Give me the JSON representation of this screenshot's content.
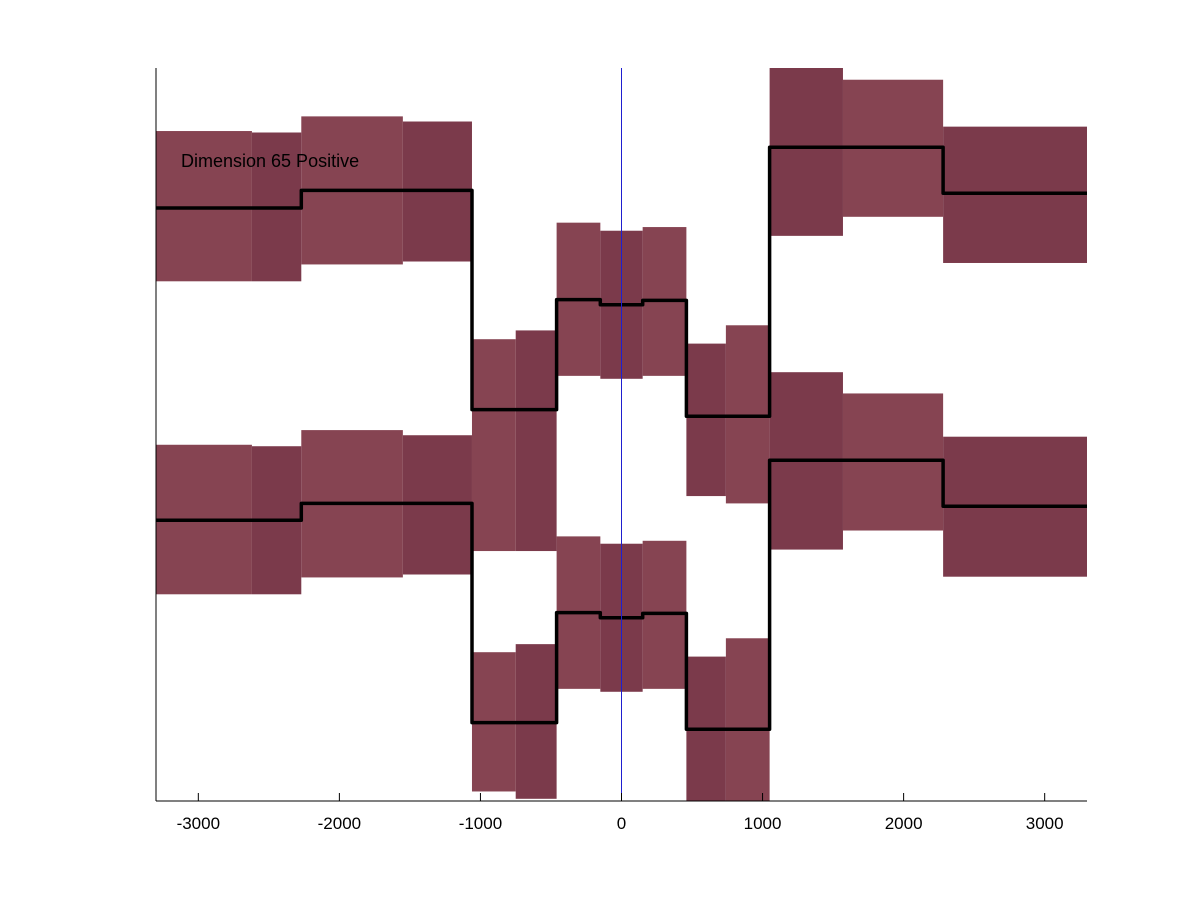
{
  "chart_data": {
    "type": "line",
    "title": "",
    "xlabel": "",
    "ylabel": "",
    "annotation": "Dimension 65 Positive",
    "xlim": [
      -3300,
      3300
    ],
    "ylim": [
      0,
      1
    ],
    "x_ticks": [
      -3000,
      -2000,
      -1000,
      0,
      1000,
      2000,
      3000
    ],
    "x_tick_labels": [
      "-3000",
      "-2000",
      "-1000",
      "0",
      "1000",
      "2000",
      "3000"
    ],
    "show_y_ticks": false,
    "grid": false,
    "reference_line_x": 0,
    "colors": {
      "band": "#7b3a4b",
      "band_alt": "#864452",
      "line": "#000000",
      "reference": "#1f1fd0",
      "axis": "#000000"
    },
    "bands": [
      {
        "name": "upper",
        "segments": [
          {
            "x": [
              -3300,
              -2620
            ],
            "lower": 0.709,
            "upper": 0.914
          },
          {
            "x": [
              -2620,
              -2270
            ],
            "lower": 0.709,
            "upper": 0.912
          },
          {
            "x": [
              -2270,
              -1550
            ],
            "lower": 0.732,
            "upper": 0.934
          },
          {
            "x": [
              -1550,
              -1060
            ],
            "lower": 0.736,
            "upper": 0.927
          },
          {
            "x": [
              -1060,
              -750
            ],
            "lower": 0.341,
            "upper": 0.63
          },
          {
            "x": [
              -750,
              -460
            ],
            "lower": 0.341,
            "upper": 0.642
          },
          {
            "x": [
              -460,
              -150
            ],
            "lower": 0.58,
            "upper": 0.789
          },
          {
            "x": [
              -150,
              150
            ],
            "lower": 0.576,
            "upper": 0.778
          },
          {
            "x": [
              150,
              460
            ],
            "lower": 0.58,
            "upper": 0.783
          },
          {
            "x": [
              460,
              740
            ],
            "lower": 0.416,
            "upper": 0.624
          },
          {
            "x": [
              740,
              1050
            ],
            "lower": 0.406,
            "upper": 0.649
          },
          {
            "x": [
              1050,
              1570
            ],
            "lower": 0.771,
            "upper": 1.0
          },
          {
            "x": [
              1570,
              2280
            ],
            "lower": 0.797,
            "upper": 0.984
          },
          {
            "x": [
              2280,
              3300
            ],
            "lower": 0.734,
            "upper": 0.92
          }
        ]
      },
      {
        "name": "lower",
        "segments": [
          {
            "x": [
              -3300,
              -2620
            ],
            "lower": 0.282,
            "upper": 0.486
          },
          {
            "x": [
              -2620,
              -2270
            ],
            "lower": 0.282,
            "upper": 0.484
          },
          {
            "x": [
              -2270,
              -1550
            ],
            "lower": 0.305,
            "upper": 0.506
          },
          {
            "x": [
              -1550,
              -1060
            ],
            "lower": 0.309,
            "upper": 0.499
          },
          {
            "x": [
              -1060,
              -750
            ],
            "lower": 0.013,
            "upper": 0.203
          },
          {
            "x": [
              -750,
              -460
            ],
            "lower": 0.003,
            "upper": 0.214
          },
          {
            "x": [
              -460,
              -150
            ],
            "lower": 0.153,
            "upper": 0.361
          },
          {
            "x": [
              -150,
              150
            ],
            "lower": 0.149,
            "upper": 0.351
          },
          {
            "x": [
              150,
              460
            ],
            "lower": 0.153,
            "upper": 0.355
          },
          {
            "x": [
              460,
              740
            ],
            "lower": 0.0,
            "upper": 0.197
          },
          {
            "x": [
              740,
              1050
            ],
            "lower": 0.0,
            "upper": 0.222
          },
          {
            "x": [
              1050,
              1570
            ],
            "lower": 0.343,
            "upper": 0.585
          },
          {
            "x": [
              1570,
              2280
            ],
            "lower": 0.369,
            "upper": 0.556
          },
          {
            "x": [
              2280,
              3300
            ],
            "lower": 0.306,
            "upper": 0.497
          }
        ]
      }
    ],
    "series": [
      {
        "x": [
          -3300,
          -2270,
          -2270,
          -1060,
          -1060,
          -460,
          -460,
          -150,
          -150,
          150,
          150,
          460,
          460,
          1050,
          1050,
          2280,
          2280,
          3300
        ],
        "y": [
          0.809,
          0.809,
          0.833,
          0.833,
          0.534,
          0.534,
          0.684,
          0.684,
          0.677,
          0.677,
          0.683,
          0.683,
          0.525,
          0.525,
          0.892,
          0.892,
          0.829,
          0.829
        ]
      },
      {
        "x": [
          -3300,
          -2270,
          -2270,
          -1060,
          -1060,
          -460,
          -460,
          -150,
          -150,
          150,
          150,
          460,
          460,
          1050,
          1050,
          2280,
          2280,
          3300
        ],
        "y": [
          0.383,
          0.383,
          0.406,
          0.406,
          0.107,
          0.107,
          0.257,
          0.257,
          0.25,
          0.25,
          0.256,
          0.256,
          0.098,
          0.098,
          0.465,
          0.465,
          0.402,
          0.402
        ]
      }
    ]
  }
}
